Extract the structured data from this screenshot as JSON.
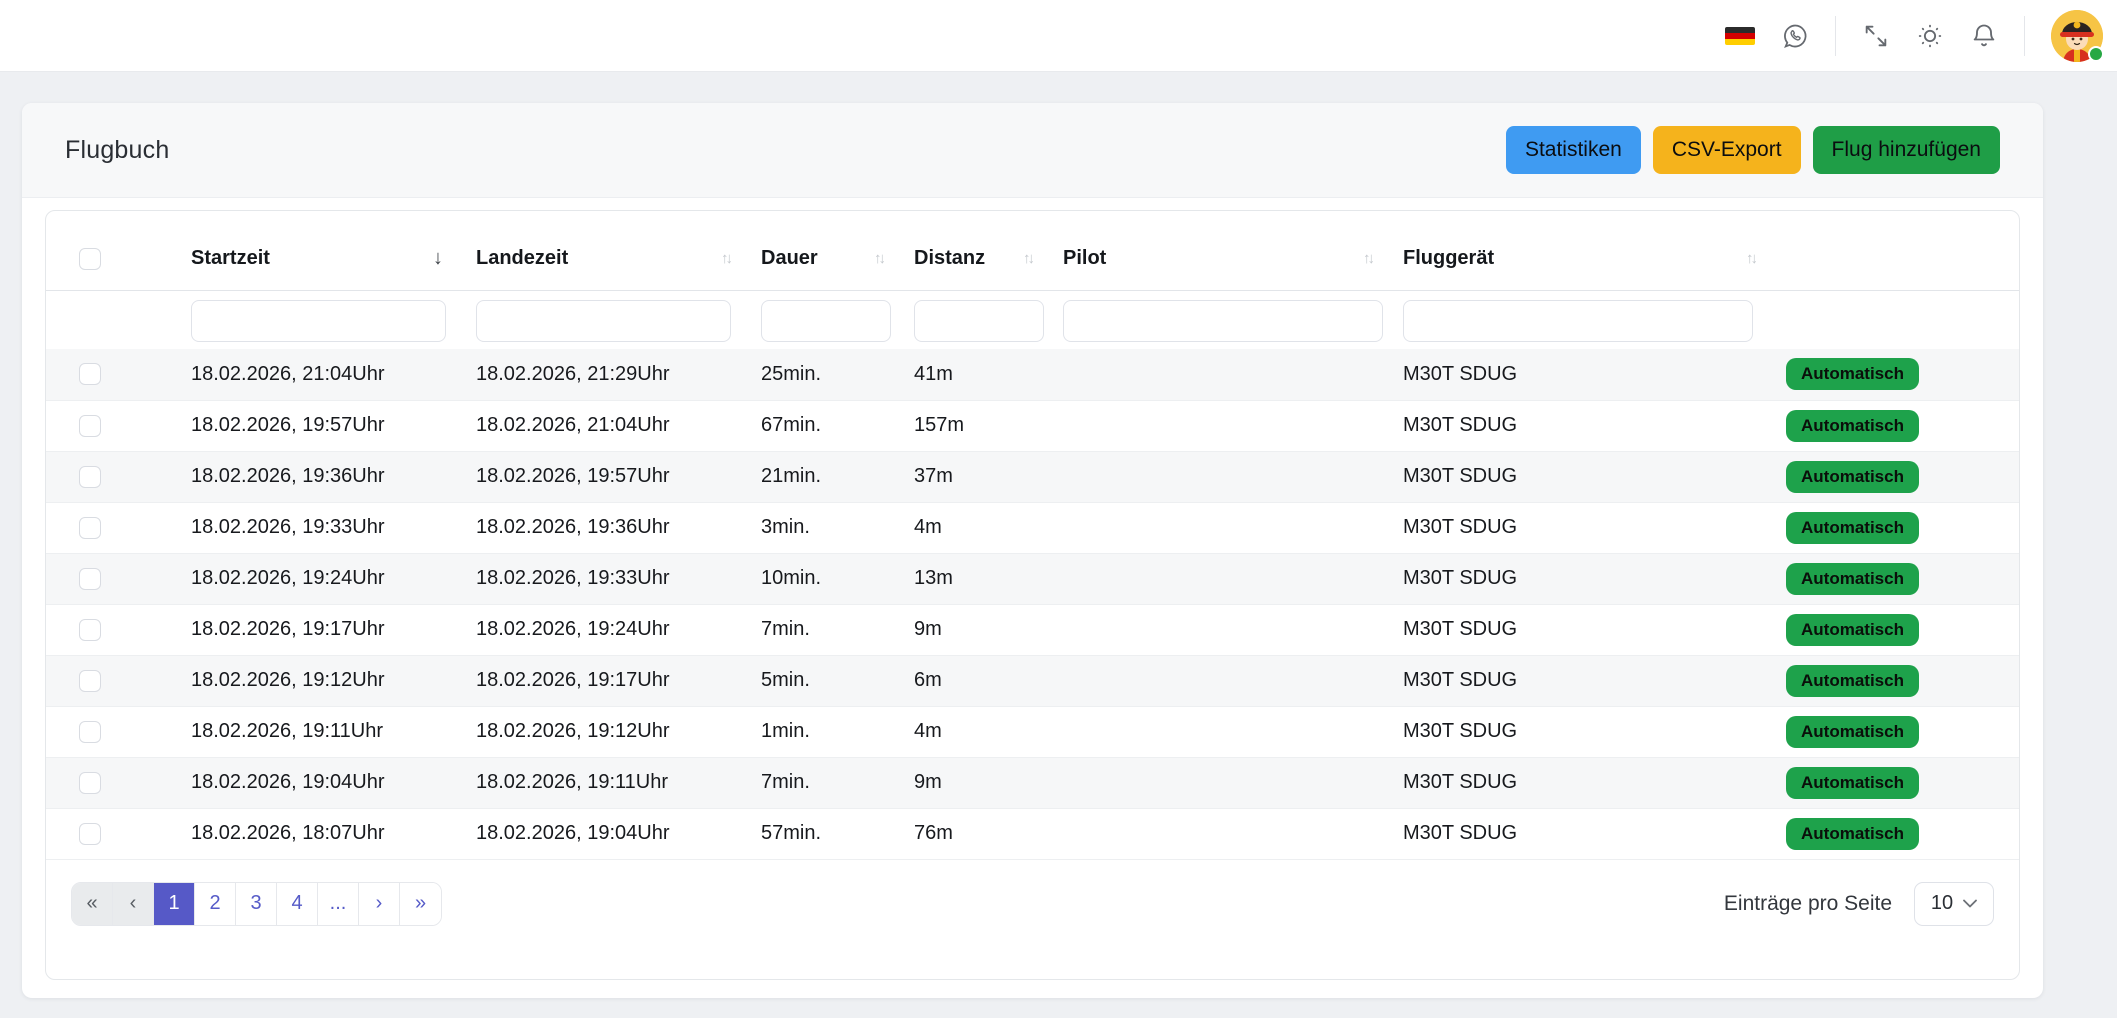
{
  "topbar": {
    "icons": [
      {
        "name": "german-flag-icon"
      },
      {
        "name": "whatsapp-icon"
      },
      {
        "name": "expand-icon"
      },
      {
        "name": "light-mode-icon"
      },
      {
        "name": "notifications-icon"
      }
    ],
    "avatar": {
      "description": "firefighter-avatar",
      "status": "online",
      "status_color": "#27a844"
    }
  },
  "header": {
    "title": "Flugbuch",
    "buttons": [
      {
        "label": "Statistiken",
        "color": "#3f9bf2"
      },
      {
        "label": "CSV-Export",
        "color": "#f5b31c"
      },
      {
        "label": "Flug hinzufügen",
        "color": "#1f9e47"
      }
    ]
  },
  "table": {
    "columns": [
      {
        "label": "Startzeit",
        "sort": "desc"
      },
      {
        "label": "Landezeit",
        "sort": "none"
      },
      {
        "label": "Dauer",
        "sort": "none"
      },
      {
        "label": "Distanz",
        "sort": "none"
      },
      {
        "label": "Pilot",
        "sort": "none"
      },
      {
        "label": "Fluggerät",
        "sort": "none"
      }
    ],
    "rows": [
      {
        "startzeit": "18.02.2026, 21:04Uhr",
        "landezeit": "18.02.2026, 21:29Uhr",
        "dauer": "25min.",
        "distanz": "41m",
        "pilot": "",
        "fluggeraet": "M30T SDUG",
        "status": "Automatisch"
      },
      {
        "startzeit": "18.02.2026, 19:57Uhr",
        "landezeit": "18.02.2026, 21:04Uhr",
        "dauer": "67min.",
        "distanz": "157m",
        "pilot": "",
        "fluggeraet": "M30T SDUG",
        "status": "Automatisch"
      },
      {
        "startzeit": "18.02.2026, 19:36Uhr",
        "landezeit": "18.02.2026, 19:57Uhr",
        "dauer": "21min.",
        "distanz": "37m",
        "pilot": "",
        "fluggeraet": "M30T SDUG",
        "status": "Automatisch"
      },
      {
        "startzeit": "18.02.2026, 19:33Uhr",
        "landezeit": "18.02.2026, 19:36Uhr",
        "dauer": "3min.",
        "distanz": "4m",
        "pilot": "",
        "fluggeraet": "M30T SDUG",
        "status": "Automatisch"
      },
      {
        "startzeit": "18.02.2026, 19:24Uhr",
        "landezeit": "18.02.2026, 19:33Uhr",
        "dauer": "10min.",
        "distanz": "13m",
        "pilot": "",
        "fluggeraet": "M30T SDUG",
        "status": "Automatisch"
      },
      {
        "startzeit": "18.02.2026, 19:17Uhr",
        "landezeit": "18.02.2026, 19:24Uhr",
        "dauer": "7min.",
        "distanz": "9m",
        "pilot": "",
        "fluggeraet": "M30T SDUG",
        "status": "Automatisch"
      },
      {
        "startzeit": "18.02.2026, 19:12Uhr",
        "landezeit": "18.02.2026, 19:17Uhr",
        "dauer": "5min.",
        "distanz": "6m",
        "pilot": "",
        "fluggeraet": "M30T SDUG",
        "status": "Automatisch"
      },
      {
        "startzeit": "18.02.2026, 19:11Uhr",
        "landezeit": "18.02.2026, 19:12Uhr",
        "dauer": "1min.",
        "distanz": "4m",
        "pilot": "",
        "fluggeraet": "M30T SDUG",
        "status": "Automatisch"
      },
      {
        "startzeit": "18.02.2026, 19:04Uhr",
        "landezeit": "18.02.2026, 19:11Uhr",
        "dauer": "7min.",
        "distanz": "9m",
        "pilot": "",
        "fluggeraet": "M30T SDUG",
        "status": "Automatisch"
      },
      {
        "startzeit": "18.02.2026, 18:07Uhr",
        "landezeit": "18.02.2026, 19:04Uhr",
        "dauer": "57min.",
        "distanz": "76m",
        "pilot": "",
        "fluggeraet": "M30T SDUG",
        "status": "Automatisch"
      }
    ],
    "badge_color": "#1ea24b"
  },
  "pagination": {
    "items": [
      {
        "label": "«",
        "name": "first",
        "state": "disabled"
      },
      {
        "label": "‹",
        "name": "prev",
        "state": "disabled"
      },
      {
        "label": "1",
        "name": "page-1",
        "state": "active"
      },
      {
        "label": "2",
        "name": "page-2",
        "state": ""
      },
      {
        "label": "3",
        "name": "page-3",
        "state": ""
      },
      {
        "label": "4",
        "name": "page-4",
        "state": ""
      },
      {
        "label": "...",
        "name": "ellipsis",
        "state": ""
      },
      {
        "label": "›",
        "name": "next",
        "state": ""
      },
      {
        "label": "»",
        "name": "last",
        "state": ""
      }
    ],
    "active_color": "#5659c7"
  },
  "footer": {
    "per_page_label": "Einträge pro Seite",
    "per_page_value": "10"
  }
}
